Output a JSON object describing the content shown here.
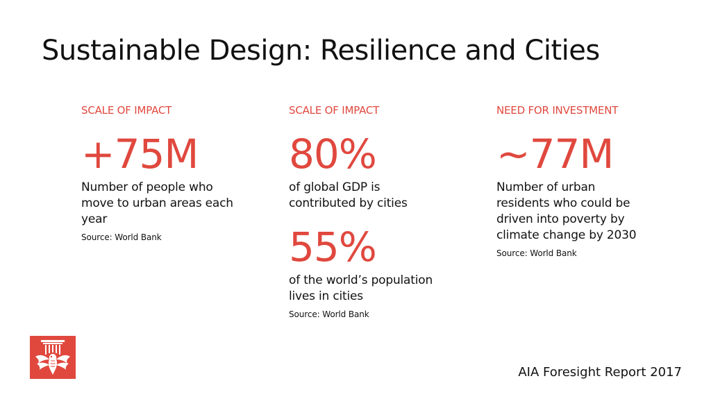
{
  "title": "Sustainable Design: Resilience and Cities",
  "columns": [
    {
      "kicker": "SCALE OF IMPACT",
      "stat": "+75M",
      "description": "Number of people who move to urban areas each year",
      "source": "Source: World Bank"
    },
    {
      "kicker": "SCALE OF IMPACT",
      "stat": "80%",
      "description": "of global GDP is contributed by cities",
      "stat2": "55%",
      "description2": "of the world’s population lives in cities",
      "source": "Source: World Bank"
    },
    {
      "kicker": "NEED FOR INVESTMENT",
      "stat": "~77M",
      "description": "Number of urban residents who could be driven into poverty by climate change by 2030",
      "source": "Source: World Bank"
    }
  ],
  "footer": "AIA Foresight Report 2017",
  "logo": {
    "icon": "aia-eagle-column-logo",
    "color": "#e0483e"
  },
  "accent_color": "#e0483e"
}
